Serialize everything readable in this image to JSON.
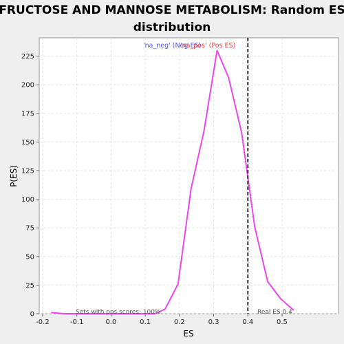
{
  "chart_data": {
    "type": "line",
    "title": "FRUCTOSE AND MANNOSE METABOLISM: Random ES distribution",
    "title_lines": [
      "FRUCTOSE AND MANNOSE METABOLISM: Random ES",
      "distribution"
    ],
    "xlabel": "ES",
    "ylabel": "P(ES)",
    "xlim": [
      -0.21,
      0.665
    ],
    "ylim": [
      0,
      241
    ],
    "x_ticks": [
      -0.2,
      -0.1,
      0.0,
      0.1,
      0.2,
      0.3,
      0.4,
      0.5
    ],
    "x_tick_labels": [
      "-0.2",
      "-0.1",
      "0.0",
      "0.1",
      "0.2",
      "0.3",
      "0.4",
      "0.5"
    ],
    "y_ticks": [
      0,
      25,
      50,
      75,
      100,
      125,
      150,
      175,
      200,
      225
    ],
    "y_tick_labels": [
      "0",
      "25",
      "50",
      "75",
      "100",
      "125",
      "150",
      "175",
      "200",
      "225"
    ],
    "grid": true,
    "legend": {
      "placement": "top-center",
      "entries": [
        "'na_neg' (Neg ES)",
        "'na_pos' (Pos ES)"
      ]
    },
    "series": [
      {
        "name": "'na_pos' (Pos ES)",
        "color": "#ee44ee",
        "x": [
          -0.175,
          -0.137,
          -0.1,
          -0.062,
          -0.024,
          0.014,
          0.052,
          0.09,
          0.128,
          0.158,
          0.196,
          0.234,
          0.272,
          0.31,
          0.344,
          0.382,
          0.42,
          0.458,
          0.496,
          0.534
        ],
        "y": [
          1,
          0,
          0,
          0,
          0,
          0,
          0,
          0,
          0,
          4,
          26,
          109,
          160,
          230,
          206,
          158,
          76,
          28,
          13,
          3
        ]
      }
    ],
    "real_es": {
      "value": 0.4,
      "label": "Real ES 0.4",
      "color": "#333333"
    },
    "annotation": "Sets with pos scores: 100%"
  }
}
